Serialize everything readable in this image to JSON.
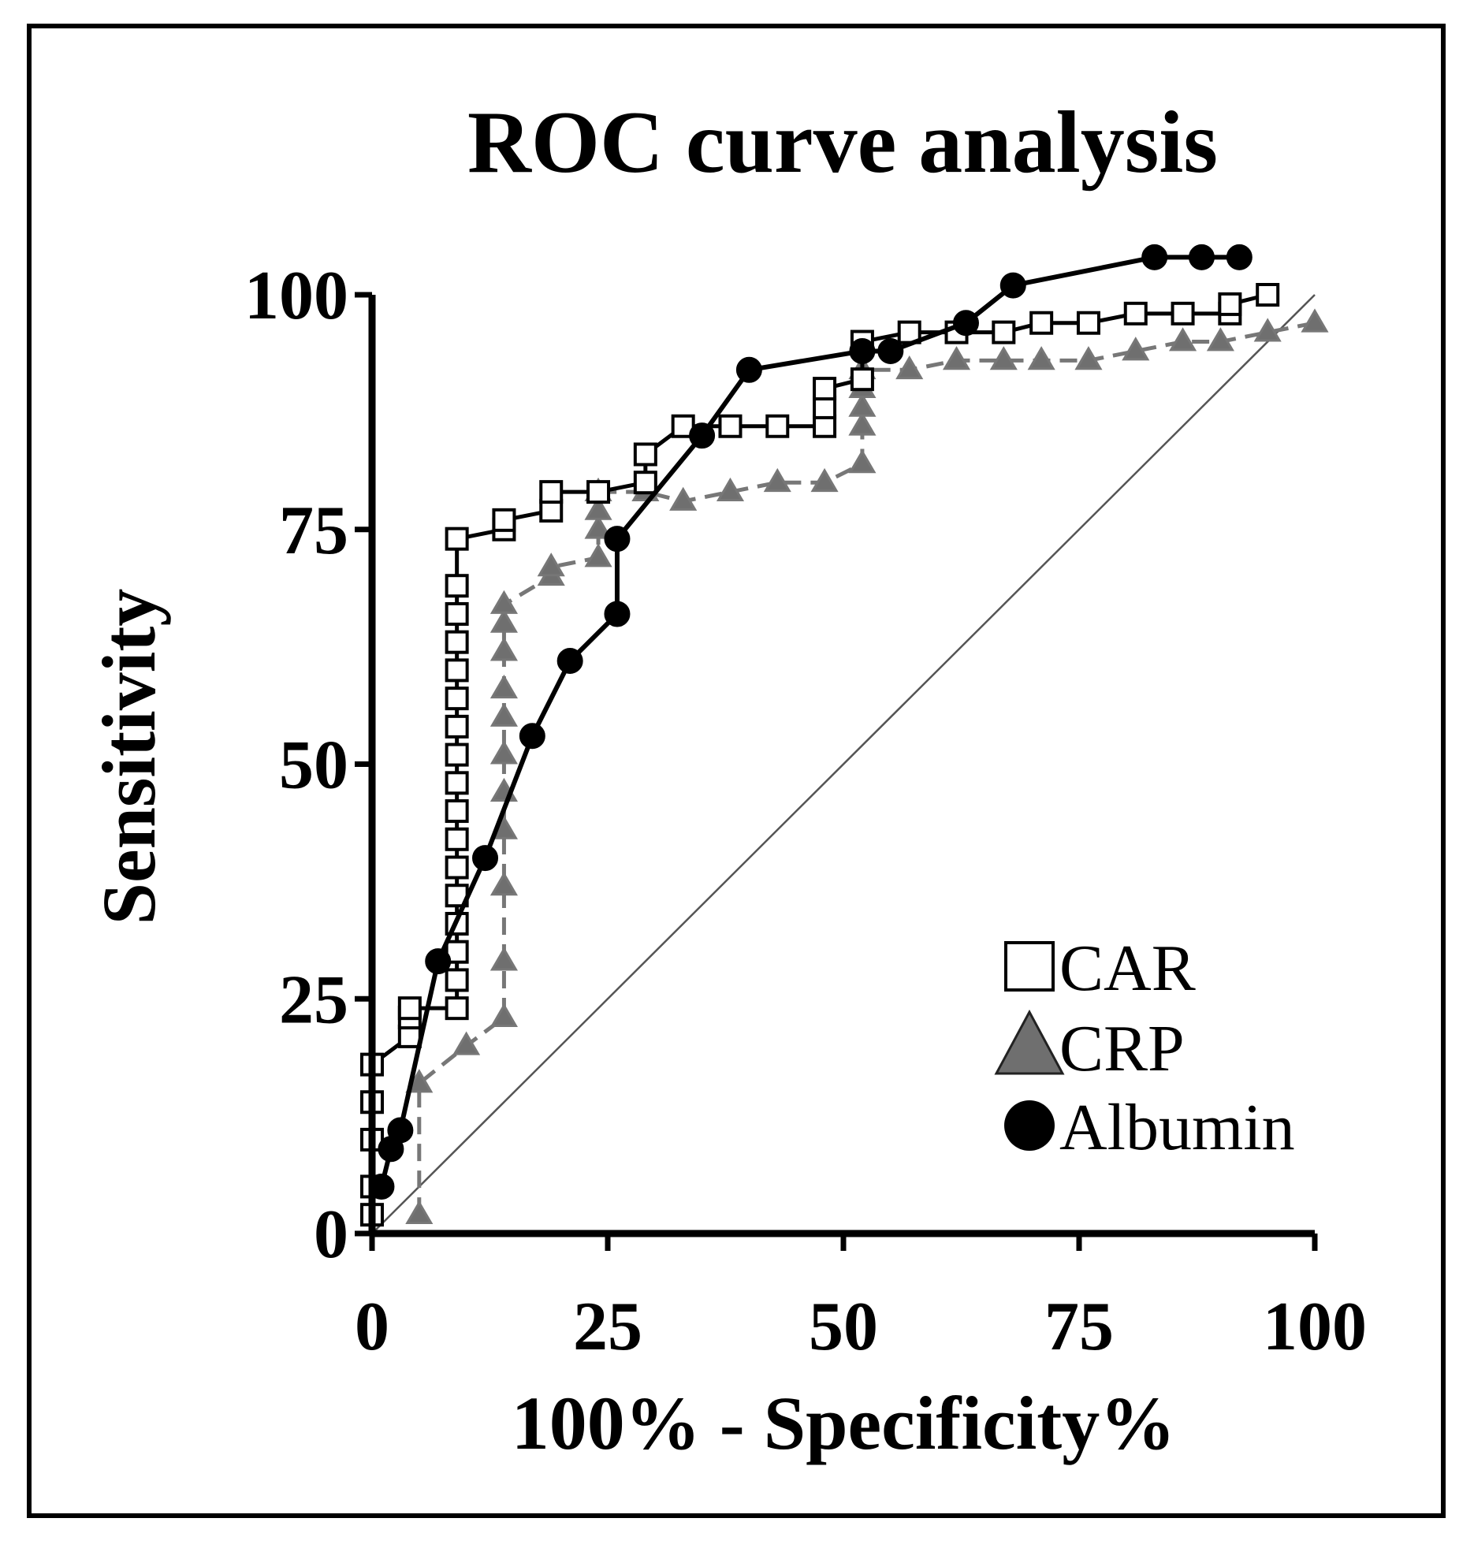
{
  "chart_data": {
    "type": "line",
    "title": "ROC curve analysis",
    "xlabel": "100% - Specificity%",
    "ylabel": "Sensitivity",
    "xlim": [
      0,
      100
    ],
    "ylim": [
      0,
      100
    ],
    "x_ticks": [
      "0",
      "25",
      "50",
      "75",
      "100"
    ],
    "y_ticks": [
      "0",
      "25",
      "50",
      "75",
      "100"
    ],
    "x_tick_values": [
      0,
      25,
      50,
      75,
      100
    ],
    "y_tick_values": [
      0,
      25,
      50,
      75,
      100
    ],
    "legend_position": "bottom-right",
    "colors": {
      "axis": "#000000",
      "car_line": "#000000",
      "car_fill": "#ffffff",
      "crp_line": "#777777",
      "crp_fill": "#6f6f6f",
      "albumin_line": "#000000",
      "albumin_fill": "#000000",
      "reference": "#555555"
    },
    "reference_line": {
      "x": [
        0,
        100
      ],
      "y": [
        0,
        100
      ]
    },
    "series": [
      {
        "name": "CAR",
        "marker": "square",
        "x": [
          0,
          0,
          0,
          0,
          0,
          4,
          4,
          4,
          9,
          9,
          9,
          9,
          9,
          9,
          9,
          9,
          9,
          9,
          9,
          9,
          9,
          9,
          9,
          9,
          9,
          14,
          14,
          19,
          19,
          24,
          29,
          29,
          33,
          38,
          43,
          48,
          48,
          48,
          52,
          52,
          57,
          62,
          67,
          71,
          76,
          81,
          86,
          91,
          91,
          95
        ],
        "y": [
          2,
          5,
          10,
          14,
          18,
          21,
          23,
          24,
          24,
          27,
          30,
          33,
          36,
          39,
          42,
          45,
          48,
          51,
          54,
          57,
          60,
          63,
          66,
          69,
          74,
          75,
          76,
          77,
          79,
          79,
          80,
          83,
          86,
          86,
          86,
          86,
          88,
          90,
          91,
          95,
          96,
          96,
          96,
          97,
          97,
          98,
          98,
          98,
          99,
          100
        ]
      },
      {
        "name": "CRP",
        "marker": "triangle",
        "x": [
          5,
          5,
          10,
          14,
          14,
          14,
          14,
          14,
          14,
          14,
          14,
          14,
          14,
          14,
          19,
          19,
          24,
          24,
          24,
          24,
          29,
          33,
          38,
          43,
          48,
          52,
          52,
          52,
          52,
          52,
          57,
          62,
          67,
          71,
          76,
          81,
          86,
          90,
          95,
          100
        ],
        "y": [
          2,
          16,
          20,
          23,
          29,
          37,
          43,
          47,
          51,
          55,
          58,
          62,
          65,
          67,
          70,
          71,
          72,
          75,
          77,
          79,
          79,
          78,
          79,
          80,
          80,
          82,
          86,
          88,
          90,
          92,
          92,
          93,
          93,
          93,
          93,
          94,
          95,
          95,
          96,
          97
        ]
      },
      {
        "name": "Albumin",
        "marker": "circle",
        "x": [
          1,
          2,
          3,
          7,
          12,
          17,
          21,
          26,
          26,
          35,
          40,
          52,
          55,
          63,
          68,
          83,
          88,
          92
        ],
        "y": [
          5,
          9,
          11,
          29,
          40,
          53,
          61,
          66,
          74,
          85,
          92,
          94,
          94,
          97,
          101,
          104,
          104,
          104
        ]
      }
    ]
  }
}
